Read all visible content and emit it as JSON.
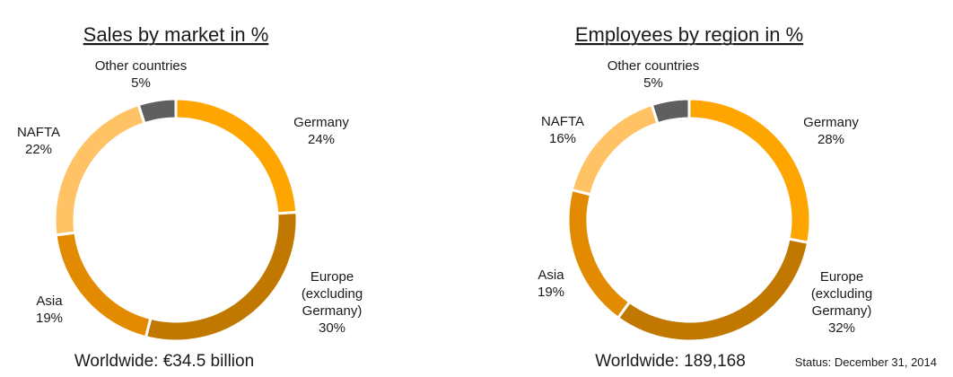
{
  "colors": {
    "Germany": "#FFA500",
    "Europe (excluding Germany)": "#C07800",
    "Asia": "#E38B00",
    "NAFTA": "#FFC366",
    "Other countries": "#5F5F5F"
  },
  "chart_data": [
    {
      "type": "pie",
      "title": "Sales by market in %",
      "footer": "Worldwide: €34.5 billion",
      "categories": [
        "Germany",
        "Europe (excluding Germany)",
        "Asia",
        "NAFTA",
        "Other countries"
      ],
      "values": [
        24,
        30,
        19,
        22,
        5
      ],
      "labels": [
        [
          "Germany",
          "24%"
        ],
        [
          "Europe",
          "(excluding",
          "Germany)",
          "30%"
        ],
        [
          "Asia",
          "19%"
        ],
        [
          "NAFTA",
          "22%"
        ],
        [
          "Other countries",
          "5%"
        ]
      ]
    },
    {
      "type": "pie",
      "title": "Employees by region in %",
      "footer": "Worldwide: 189,168",
      "categories": [
        "Germany",
        "Europe (excluding Germany)",
        "Asia",
        "NAFTA",
        "Other countries"
      ],
      "values": [
        28,
        32,
        19,
        16,
        5
      ],
      "labels": [
        [
          "Germany",
          "28%"
        ],
        [
          "Europe",
          "(excluding",
          "Germany)",
          "32%"
        ],
        [
          "Asia",
          "19%"
        ],
        [
          "NAFTA",
          "16%"
        ],
        [
          "Other countries",
          "5%"
        ]
      ]
    }
  ],
  "status": "Status: December 31, 2014"
}
